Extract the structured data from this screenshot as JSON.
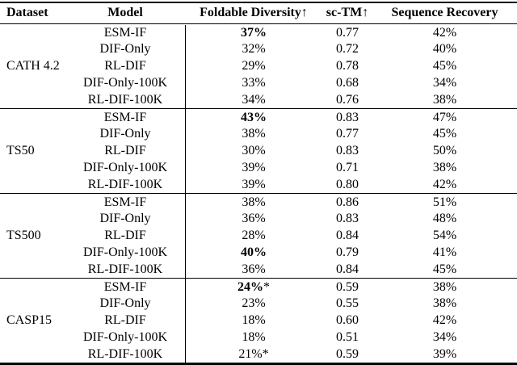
{
  "header": {
    "dataset": "Dataset",
    "model": "Model",
    "fd": "Foldable Diversity↑",
    "sctm": "sc-TM↑",
    "rec": "Sequence Recovery"
  },
  "groups": [
    {
      "dataset": "CATH 4.2",
      "rows": [
        {
          "model": "ESM-IF",
          "fd": "37%",
          "sctm": "0.77",
          "rec": "42%"
        },
        {
          "model": "DIF-Only",
          "fd": "32%",
          "sctm": "0.72",
          "rec": "40%"
        },
        {
          "model": "RL-DIF",
          "fd": "29%",
          "sctm": "0.78",
          "rec": "45%"
        },
        {
          "model": "DIF-Only-100K",
          "fd": "33%",
          "sctm": "0.68",
          "rec": "34%"
        },
        {
          "model": "RL-DIF-100K",
          "fd": "34%",
          "sctm": "0.76",
          "rec": "38%"
        }
      ]
    },
    {
      "dataset": "TS50",
      "rows": [
        {
          "model": "ESM-IF",
          "fd": "43%",
          "sctm": "0.83",
          "rec": "47%"
        },
        {
          "model": "DIF-Only",
          "fd": "38%",
          "sctm": "0.77",
          "rec": "45%"
        },
        {
          "model": "RL-DIF",
          "fd": "30%",
          "sctm": "0.83",
          "rec": "50%"
        },
        {
          "model": "DIF-Only-100K",
          "fd": "39%",
          "sctm": "0.71",
          "rec": "38%"
        },
        {
          "model": "RL-DIF-100K",
          "fd": "39%",
          "sctm": "0.80",
          "rec": "42%"
        }
      ]
    },
    {
      "dataset": "TS500",
      "rows": [
        {
          "model": "ESM-IF",
          "fd": "38%",
          "sctm": "0.86",
          "rec": "51%"
        },
        {
          "model": "DIF-Only",
          "fd": "36%",
          "sctm": "0.83",
          "rec": "48%"
        },
        {
          "model": "RL-DIF",
          "fd": "28%",
          "sctm": "0.84",
          "rec": "54%"
        },
        {
          "model": "DIF-Only-100K",
          "fd": "40%",
          "sctm": "0.79",
          "rec": "41%"
        },
        {
          "model": "RL-DIF-100K",
          "fd": "36%",
          "sctm": "0.84",
          "rec": "45%"
        }
      ]
    },
    {
      "dataset": "CASP15",
      "rows": [
        {
          "model": "ESM-IF",
          "fd": "24%",
          "fd_suffix": "*",
          "sctm": "0.59",
          "rec": "38%"
        },
        {
          "model": "DIF-Only",
          "fd": "23%",
          "sctm": "0.55",
          "rec": "38%"
        },
        {
          "model": "RL-DIF",
          "fd": "18%",
          "sctm": "0.60",
          "rec": "42%"
        },
        {
          "model": "DIF-Only-100K",
          "fd": "18%",
          "sctm": "0.51",
          "rec": "34%"
        },
        {
          "model": "RL-DIF-100K",
          "fd": "21%",
          "fd_suffix": "*",
          "sctm": "0.59",
          "rec": "39%"
        }
      ]
    }
  ]
}
